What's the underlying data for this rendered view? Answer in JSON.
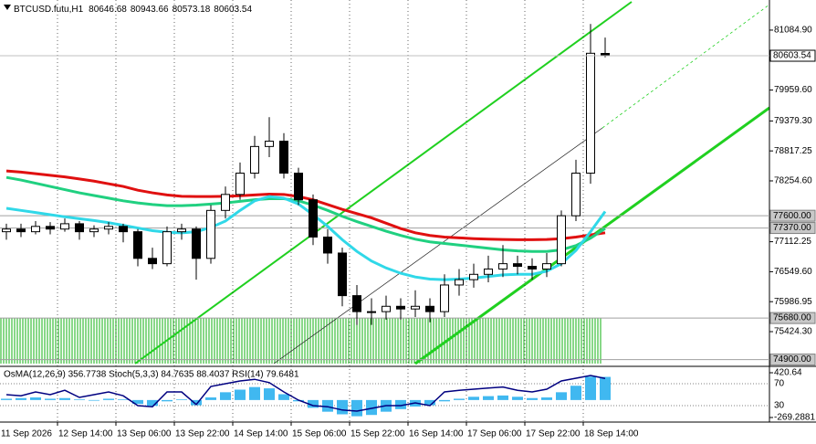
{
  "chart_data": {
    "type": "candlestick",
    "title": "BTCUSD.futu,H1",
    "categories": [
      "11 Sep 2026",
      null,
      null,
      null,
      "12 Sep 14:00",
      null,
      null,
      null,
      "13 Sep 06:00",
      null,
      null,
      null,
      "13 Sep 22:00",
      null,
      null,
      null,
      "14 Sep 14:00",
      null,
      null,
      null,
      "15 Sep 06:00",
      null,
      null,
      null,
      "15 Sep 22:00",
      null,
      null,
      null,
      "16 Sep 14:00",
      null,
      null,
      null,
      "17 Sep 06:00",
      null,
      null,
      null,
      "17 Sep 22:00",
      null,
      null,
      null,
      "18 Sep 14:00",
      null
    ],
    "open": [
      77300,
      77350,
      77300,
      77400,
      77350,
      77450,
      77300,
      77350,
      77400,
      77300,
      76800,
      76700,
      77300,
      77350,
      76800,
      77700,
      78000,
      78400,
      78900,
      79000,
      78400,
      77900,
      77200,
      76900,
      76100,
      75800,
      75800,
      75900,
      75850,
      75900,
      75800,
      76300,
      76400,
      76500,
      76600,
      76700,
      76650,
      76600,
      76700,
      77600,
      78400,
      80646.68
    ],
    "high": [
      77450,
      77450,
      77500,
      77480,
      77550,
      77500,
      77420,
      77480,
      77450,
      77350,
      77000,
      77400,
      77450,
      77400,
      77800,
      78150,
      78600,
      79100,
      79450,
      79150,
      78500,
      78000,
      77350,
      77000,
      76300,
      76050,
      76100,
      76050,
      76200,
      76050,
      76500,
      76600,
      76700,
      76850,
      77050,
      76850,
      76800,
      76900,
      77700,
      78650,
      81200,
      80943.66
    ],
    "low": [
      77150,
      77200,
      77250,
      77250,
      77300,
      77150,
      77200,
      77250,
      77100,
      76650,
      76600,
      76650,
      77150,
      76400,
      76700,
      77550,
      77900,
      78300,
      78700,
      78300,
      77800,
      77050,
      76700,
      75900,
      75550,
      75550,
      75650,
      75650,
      75700,
      75600,
      75700,
      76100,
      76250,
      76350,
      76450,
      76500,
      76400,
      76450,
      76650,
      77500,
      78200,
      80573.18
    ],
    "close": [
      77350,
      77300,
      77400,
      77350,
      77450,
      77300,
      77350,
      77400,
      77300,
      76800,
      76700,
      77300,
      77350,
      76800,
      77700,
      78000,
      78400,
      78900,
      79000,
      78400,
      77900,
      77200,
      76900,
      76100,
      75800,
      75800,
      75900,
      75850,
      75900,
      75800,
      76300,
      76400,
      76500,
      76600,
      76700,
      76650,
      76600,
      76700,
      77600,
      78400,
      80650,
      80603.54
    ],
    "lines": [
      {
        "color": "#e01010",
        "values": [
          78440,
          78420,
          78390,
          78360,
          78330,
          78290,
          78250,
          78200,
          78150,
          78080,
          78030,
          77990,
          77965,
          77960,
          77960,
          77965,
          77975,
          77990,
          78005,
          78000,
          77960,
          77900,
          77810,
          77720,
          77640,
          77560,
          77460,
          77360,
          77280,
          77230,
          77200,
          77185,
          77170,
          77160,
          77155,
          77150,
          77150,
          77155,
          77170,
          77200,
          77240,
          77280
        ]
      },
      {
        "color": "#20d080",
        "values": [
          78320,
          78270,
          78210,
          78150,
          78090,
          78030,
          77980,
          77930,
          77880,
          77840,
          77810,
          77790,
          77790,
          77800,
          77820,
          77840,
          77870,
          77900,
          77920,
          77920,
          77880,
          77800,
          77700,
          77590,
          77490,
          77400,
          77310,
          77230,
          77160,
          77110,
          77080,
          77050,
          77020,
          76990,
          76960,
          76940,
          76930,
          76930,
          76960,
          77040,
          77180,
          77360
        ]
      },
      {
        "color": "#30d8e8",
        "values": [
          77740,
          77700,
          77660,
          77620,
          77580,
          77545,
          77510,
          77470,
          77420,
          77370,
          77320,
          77290,
          77280,
          77300,
          77380,
          77500,
          77700,
          77880,
          77960,
          77930,
          77820,
          77620,
          77400,
          77150,
          76930,
          76750,
          76620,
          76520,
          76450,
          76410,
          76400,
          76410,
          76430,
          76460,
          76490,
          76500,
          76500,
          76560,
          76700,
          76950,
          77300,
          77680
        ]
      }
    ],
    "ylim": [
      74790,
      81650
    ],
    "yticks": [
      {
        "value": 81084.9,
        "label": "81084.90"
      },
      {
        "value": 79959.6,
        "label": "79959.60"
      },
      {
        "value": 79379.3,
        "label": "79379.30"
      },
      {
        "value": 78817.25,
        "label": "78817.25"
      },
      {
        "value": 78254.6,
        "label": "78254.60"
      },
      {
        "value": 77112.25,
        "label": "77112.25"
      },
      {
        "value": 76549.6,
        "label": "76549.60"
      },
      {
        "value": 75986.95,
        "label": "75986.95"
      },
      {
        "value": 75424.3,
        "label": "75424.30"
      }
    ],
    "levels": [
      {
        "value": 77600,
        "label": "77600.00"
      },
      {
        "value": 77370,
        "label": "77370.00"
      },
      {
        "value": 75680,
        "label": "75680.00"
      },
      {
        "value": 74900,
        "label": "74900.00"
      }
    ],
    "indicator": {
      "title": "OsMA(12,26,9) 356.7738 Stoch(5,3,3) 84.7635 88.4037 RSI(14) 79.6481",
      "osma": [
        20,
        30,
        40,
        20,
        30,
        10,
        -10,
        20,
        10,
        -60,
        -90,
        -20,
        10,
        -80,
        40,
        120,
        160,
        200,
        180,
        90,
        -20,
        -120,
        -180,
        -220,
        -250,
        -230,
        -180,
        -140,
        -100,
        -80,
        -20,
        20,
        50,
        60,
        70,
        50,
        30,
        40,
        120,
        220,
        360,
        356.7738
      ],
      "osma_lim": [
        -269.2881,
        420.64
      ],
      "osma_ticks": [
        420.64,
        -269.2881
      ],
      "rsi": [
        50,
        48,
        55,
        50,
        58,
        45,
        50,
        55,
        48,
        30,
        28,
        55,
        55,
        32,
        65,
        70,
        75,
        78,
        72,
        55,
        40,
        30,
        28,
        22,
        20,
        25,
        30,
        30,
        35,
        30,
        55,
        58,
        60,
        62,
        64,
        58,
        55,
        60,
        75,
        80,
        85,
        79.6481
      ],
      "rsi_lim": [
        0,
        100
      ],
      "rsi_ticks": [
        70,
        30
      ]
    }
  }
}
